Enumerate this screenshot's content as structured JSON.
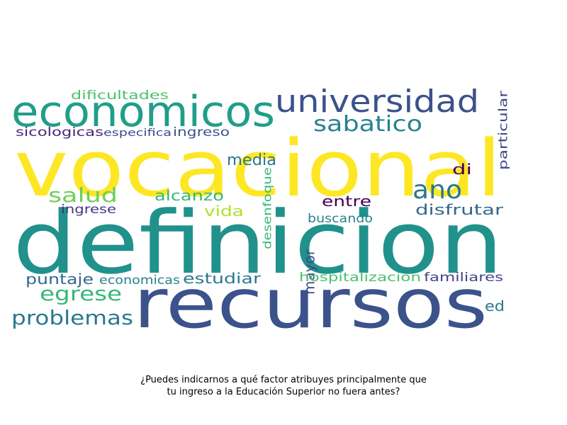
{
  "caption": {
    "line1": "¿Puedes indicarnos a qué factor atribuyes principalmente que",
    "line2": "tu ingreso a la Educación Superior no fuera antes?"
  },
  "words": [
    {
      "key": "definicion",
      "text": "definicion",
      "color": "#21918c"
    },
    {
      "key": "vocacional",
      "text": "vocacional",
      "color": "#fde725"
    },
    {
      "key": "recursos",
      "text": "recursos",
      "color": "#3b528b"
    },
    {
      "key": "economicos",
      "text": "economicos",
      "color": "#1f9e89"
    },
    {
      "key": "universidad",
      "text": "universidad",
      "color": "#3b528b"
    },
    {
      "key": "sabatico",
      "text": "sabatico",
      "color": "#26828e"
    },
    {
      "key": "ano",
      "text": "ano",
      "color": "#2a788e"
    },
    {
      "key": "salud",
      "text": "salud",
      "color": "#6ece58"
    },
    {
      "key": "egrese",
      "text": "egrese",
      "color": "#35b779"
    },
    {
      "key": "problemas",
      "text": "problemas",
      "color": "#2a788e"
    },
    {
      "key": "media",
      "text": "media",
      "color": "#2a788e"
    },
    {
      "key": "alcanzo",
      "text": "alcanzo",
      "color": "#35b779"
    },
    {
      "key": "vida",
      "text": "vida",
      "color": "#b5de2b"
    },
    {
      "key": "entre",
      "text": "entre",
      "color": "#440154"
    },
    {
      "key": "disfrutar",
      "text": "disfrutar",
      "color": "#31688e"
    },
    {
      "key": "puntaje",
      "text": "puntaje",
      "color": "#31688e"
    },
    {
      "key": "estudiar",
      "text": "estudiar",
      "color": "#2a788e"
    },
    {
      "key": "mayor",
      "text": "mayor",
      "color": "#3e4a89"
    },
    {
      "key": "di",
      "text": "di",
      "color": "#440154"
    },
    {
      "key": "dificultades",
      "text": "dificultades",
      "color": "#4ac16d"
    },
    {
      "key": "sicologicas",
      "text": "sicologicas",
      "color": "#482878"
    },
    {
      "key": "especifica",
      "text": "especifica",
      "color": "#3e4a89"
    },
    {
      "key": "ingreso",
      "text": "ingreso",
      "color": "#3b528b"
    },
    {
      "key": "ingrese",
      "text": "ingrese",
      "color": "#46327e"
    },
    {
      "key": "economicas",
      "text": "economicas",
      "color": "#26828e"
    },
    {
      "key": "hospitalizacion",
      "text": "hospitalizacion",
      "color": "#4ac16d"
    },
    {
      "key": "familiares",
      "text": "familiares",
      "color": "#414487"
    },
    {
      "key": "ed",
      "text": "ed",
      "color": "#2a788e"
    },
    {
      "key": "buscando",
      "text": "buscando",
      "color": "#26828e"
    },
    {
      "key": "particular",
      "text": "particular",
      "color": "#414487"
    },
    {
      "key": "desenfoque",
      "text": "desenfoque",
      "color": "#35b779"
    }
  ]
}
